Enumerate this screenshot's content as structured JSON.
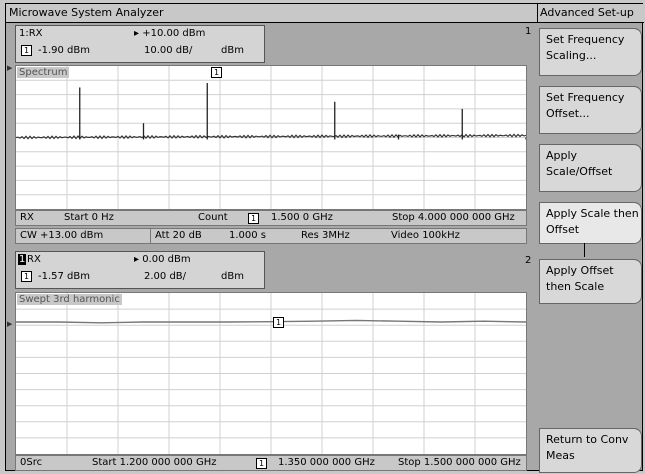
{
  "app": {
    "title": "Microwave System Analyzer",
    "side_title": "Advanced Set-up"
  },
  "trace1": {
    "number": "1",
    "name": "1:RX",
    "marker_num": "1",
    "marker_value": "-1.90 dBm",
    "ref_level": "▸ +10.00 dBm",
    "scale": "10.00 dB/",
    "unit": "dBm",
    "plot_label": "Spectrum",
    "marker_flag": "1",
    "status": {
      "source": "RX",
      "start": "Start 0 Hz",
      "count": "Count",
      "marker_num": "1",
      "marker_freq": "1.500 0 GHz",
      "stop": "Stop 4.000 000 000 GHz"
    },
    "settings": {
      "cw": "CW +13.00 dBm",
      "att": "Att 20 dB",
      "sweep": "1.000 s",
      "res": "Res 3MHz",
      "video": "Video 100kHz"
    },
    "chart_data": {
      "type": "line",
      "x": [
        0.0,
        0.5,
        1.0,
        1.5,
        2.0,
        2.5,
        3.0,
        3.5,
        4.0
      ],
      "baseline_dbm": -40,
      "peaks": [
        {
          "x_ghz": 0.5,
          "level_dbm": -5
        },
        {
          "x_ghz": 1.0,
          "level_dbm": -30
        },
        {
          "x_ghz": 1.5,
          "level_dbm": -1.9
        },
        {
          "x_ghz": 2.5,
          "level_dbm": -15
        },
        {
          "x_ghz": 3.0,
          "level_dbm": -38
        },
        {
          "x_ghz": 3.5,
          "level_dbm": -20
        },
        {
          "x_ghz": 4.0,
          "level_dbm": -40
        }
      ],
      "xlim": [
        0,
        4
      ],
      "ylim": [
        -90,
        10
      ],
      "grid": true
    }
  },
  "trace2": {
    "number": "2",
    "name": "RX",
    "name_index": "1",
    "marker_num": "1",
    "marker_value": "-1.57 dBm",
    "ref_level": "▸ 0.00 dBm",
    "scale": "2.00 dB/",
    "unit": "dBm",
    "plot_label": "Swept 3rd harmonic",
    "marker_flag": "1",
    "status": {
      "source": "0Src",
      "start": "Start 1.200 000 000 GHz",
      "marker_num": "1",
      "marker_freq": "1.350 000 000 GHz",
      "stop": "Stop 1.500 000 000 GHz"
    },
    "chart_data": {
      "type": "line",
      "x": [
        1.2,
        1.225,
        1.25,
        1.275,
        1.3,
        1.325,
        1.35,
        1.375,
        1.4,
        1.425,
        1.45,
        1.475,
        1.5
      ],
      "values": [
        -1.6,
        -1.6,
        -1.7,
        -1.6,
        -1.6,
        -1.6,
        -1.57,
        -1.5,
        -1.4,
        -1.5,
        -1.6,
        -1.5,
        -1.6
      ],
      "xlim": [
        1.2,
        1.5
      ],
      "ylim": [
        -18,
        2
      ],
      "grid": true
    }
  },
  "softkeys": [
    {
      "label": "Set Frequency Scaling..."
    },
    {
      "label": "Set Frequency Offset..."
    },
    {
      "label": "Apply Scale/Offset"
    },
    {
      "label": "Apply Scale then Offset"
    },
    {
      "label": "Apply Offset then Scale"
    },
    {
      "label": "Return to Conv Meas"
    }
  ]
}
